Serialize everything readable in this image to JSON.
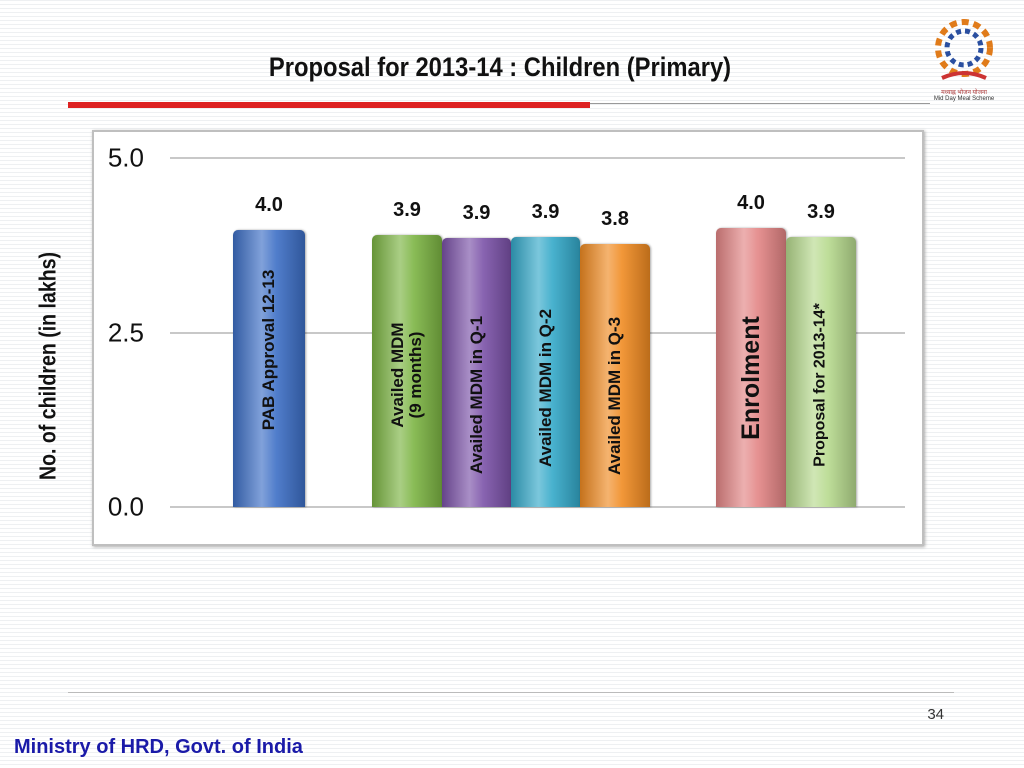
{
  "header": {
    "logo_text_hindi": "मध्याह्न भोजन योजना",
    "logo_text": "Mid Day Meal Scheme"
  },
  "chart_data": {
    "type": "bar",
    "title": "Proposal for 2013-14 : Children (Primary)",
    "y_label": "No. of children (in lakhs)",
    "categories": [
      "PAB Approval 12-13",
      "Availed MDM\n(9 months)",
      "Availed MDM in Q-1",
      "Availed MDM in Q-2",
      "Availed MDM in Q-3",
      "Enrolment",
      "Proposal for 2013-14*"
    ],
    "values": [
      3.97,
      3.9,
      3.86,
      3.87,
      3.77,
      4.0,
      3.87
    ],
    "value_labels": [
      "4.0",
      "3.9",
      "3.9",
      "3.9",
      "3.8",
      "4.0",
      "3.9"
    ],
    "colors": [
      "#3d6fc6",
      "#7cb443",
      "#7b52a8",
      "#34a9c9",
      "#f08b22",
      "#e38585",
      "#b7da8e"
    ],
    "ylim": [
      0,
      5
    ],
    "yticks": [
      {
        "value": 0,
        "label": "0.0"
      },
      {
        "value": 2.5,
        "label": "2.5"
      },
      {
        "value": 5,
        "label": "5.0"
      }
    ],
    "grid": true
  },
  "footer": {
    "page_number": "34",
    "organization": "Ministry of HRD, Govt. of India"
  }
}
